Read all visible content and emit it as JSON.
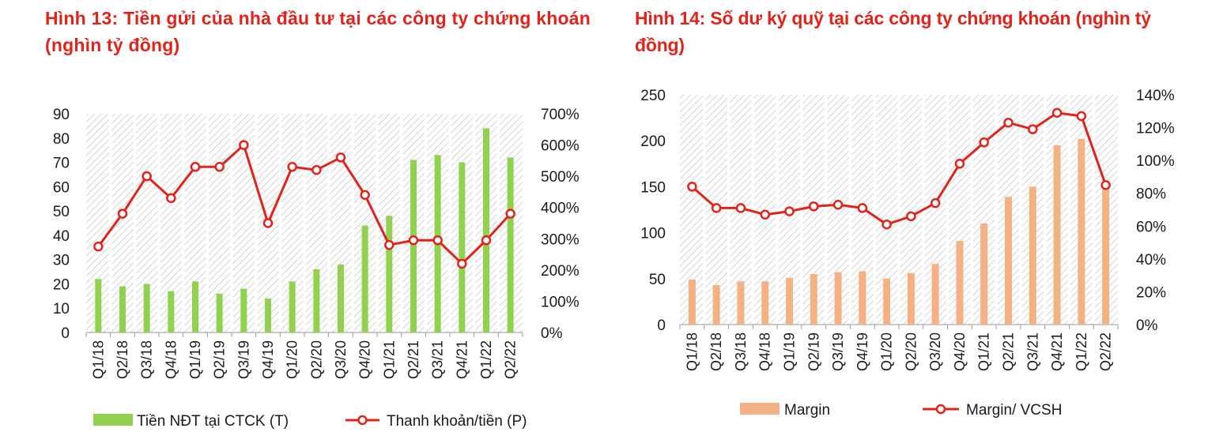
{
  "titles": {
    "left": "Hình 13: Tiền gửi của nhà đầu tư tại các công ty chứng khoán (nghìn tỷ đồng)",
    "right": "Hình 14: Số dư ký quỹ tại các công ty chứng khoán (nghìn tỷ đồng)"
  },
  "colors": {
    "title": "#e2231a",
    "bar_left": "#92d050",
    "bar_right": "#f4b183",
    "line": "#e2231a",
    "marker_fill": "#ffffff"
  },
  "chart_data": [
    {
      "type": "bar",
      "combo_line": true,
      "title": "Hình 13: Tiền gửi của nhà đầu tư tại các công ty chứng khoán (nghìn tỷ đồng)",
      "categories": [
        "Q1/18",
        "Q2/18",
        "Q3/18",
        "Q4/18",
        "Q1/19",
        "Q2/19",
        "Q3/19",
        "Q4/19",
        "Q1/20",
        "Q2/20",
        "Q3/20",
        "Q4/20",
        "Q1/21",
        "Q2/21",
        "Q3/21",
        "Q4/21",
        "Q1/22",
        "Q2/22"
      ],
      "y_ticks": [
        "0",
        "10",
        "20",
        "30",
        "40",
        "50",
        "60",
        "70",
        "80",
        "90"
      ],
      "y2_ticks": [
        "0%",
        "100%",
        "200%",
        "300%",
        "400%",
        "500%",
        "600%",
        "700%"
      ],
      "ylim": [
        0,
        90
      ],
      "y2lim": [
        0,
        7
      ],
      "series": [
        {
          "name": "Tiền NĐT tại CTCK (T)",
          "type": "bar",
          "axis": "left",
          "values": [
            22,
            19,
            20,
            17,
            21,
            16,
            18,
            14,
            21,
            26,
            28,
            44,
            48,
            71,
            73,
            70,
            84,
            72
          ]
        },
        {
          "name": "Thanh khoản/tiền (P)",
          "type": "line",
          "axis": "right",
          "values": [
            2.75,
            3.8,
            5.0,
            4.3,
            5.3,
            5.3,
            6.0,
            3.5,
            5.3,
            5.2,
            5.6,
            4.4,
            2.8,
            2.95,
            2.95,
            2.2,
            2.95,
            3.8
          ]
        }
      ],
      "legend_position": "bottom",
      "grid": false
    },
    {
      "type": "bar",
      "combo_line": true,
      "title": "Hình 14: Số dư ký quỹ tại các công ty chứng khoán (nghìn tỷ đồng)",
      "categories": [
        "Q1/18",
        "Q2/18",
        "Q3/18",
        "Q4/18",
        "Q1/19",
        "Q2/19",
        "Q3/19",
        "Q4/19",
        "Q1/20",
        "Q2/20",
        "Q3/20",
        "Q4/20",
        "Q1/21",
        "Q2/21",
        "Q3/21",
        "Q4/21",
        "Q1/22",
        "Q2/22"
      ],
      "y_ticks": [
        "0",
        "50",
        "100",
        "150",
        "200",
        "250"
      ],
      "y2_ticks": [
        "0%",
        "20%",
        "40%",
        "60%",
        "80%",
        "100%",
        "120%",
        "140%"
      ],
      "ylim": [
        0,
        250
      ],
      "y2lim": [
        0,
        1.4
      ],
      "series": [
        {
          "name": "Margin",
          "type": "bar",
          "axis": "left",
          "values": [
            49,
            43,
            47,
            47,
            51,
            55,
            57,
            58,
            50,
            56,
            66,
            91,
            110,
            139,
            150,
            195,
            202,
            155
          ]
        },
        {
          "name": "Margin/ VCSH",
          "type": "line",
          "axis": "right",
          "values": [
            0.84,
            0.71,
            0.71,
            0.67,
            0.69,
            0.72,
            0.73,
            0.71,
            0.61,
            0.66,
            0.74,
            0.98,
            1.11,
            1.23,
            1.19,
            1.29,
            1.27,
            0.85
          ]
        }
      ],
      "legend_position": "bottom",
      "grid": false
    }
  ]
}
